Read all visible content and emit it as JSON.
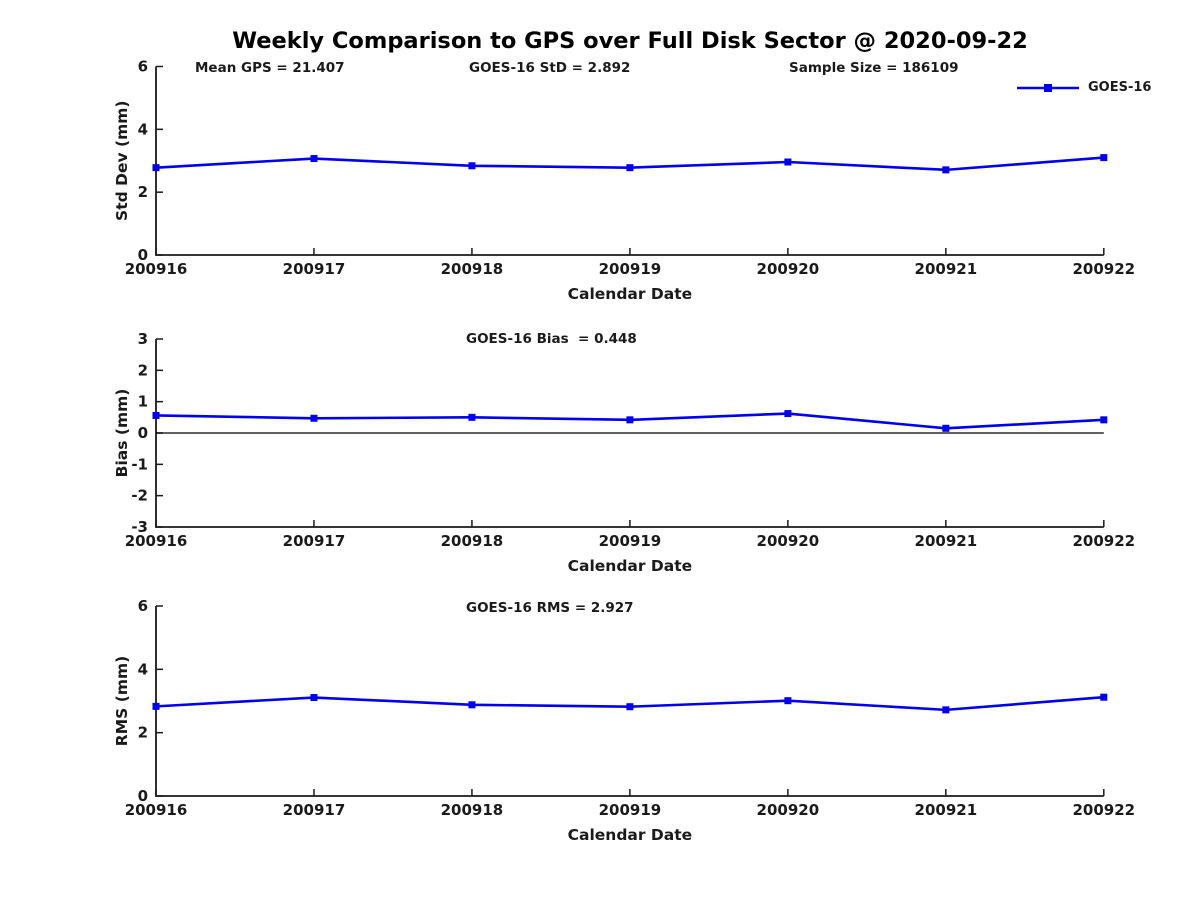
{
  "figure": {
    "title": "Weekly Comparison to GPS over Full Disk Sector @ 2020-09-22",
    "annotations": [
      {
        "id": "mean-gps",
        "text": "Mean GPS = 21.407"
      },
      {
        "id": "goes16-std",
        "text": "GOES-16 StD = 2.892"
      },
      {
        "id": "sample-size",
        "text": "Sample Size = 186109"
      }
    ],
    "legend": {
      "label": "GOES-16",
      "marker": "square-icon",
      "position": "top-right-outside"
    },
    "colors": {
      "series": "#0000EE",
      "axis": "#1a1a1a",
      "text": "#1a1a1a",
      "zero_line": "#000000",
      "background": "#FFFFFF"
    }
  },
  "chart_data": [
    {
      "type": "line",
      "panel": "std-dev",
      "subtitle": "",
      "categories": [
        "200916",
        "200917",
        "200918",
        "200919",
        "200920",
        "200921",
        "200922"
      ],
      "series": [
        {
          "name": "GOES-16",
          "marker": "square",
          "color": "#0000EE",
          "values": [
            2.78,
            3.07,
            2.84,
            2.78,
            2.96,
            2.71,
            3.1
          ]
        }
      ],
      "xlabel": "Calendar Date",
      "ylabel": "Std Dev (mm)",
      "ylim": [
        0,
        6
      ],
      "yticks": [
        6,
        4,
        2,
        0
      ],
      "zero_line": false,
      "grid": false
    },
    {
      "type": "line",
      "panel": "bias",
      "subtitle": "GOES-16 Bias  = 0.448",
      "categories": [
        "200916",
        "200917",
        "200918",
        "200919",
        "200920",
        "200921",
        "200922"
      ],
      "series": [
        {
          "name": "GOES-16",
          "marker": "square",
          "color": "#0000EE",
          "values": [
            0.56,
            0.47,
            0.5,
            0.42,
            0.62,
            0.15,
            0.42
          ]
        }
      ],
      "xlabel": "Calendar Date",
      "ylabel": "Bias (mm)",
      "ylim": [
        -3,
        3
      ],
      "yticks": [
        3,
        2,
        1,
        0,
        -1,
        -2,
        -3
      ],
      "zero_line": true,
      "grid": false
    },
    {
      "type": "line",
      "panel": "rms",
      "subtitle": "GOES-16 RMS = 2.927",
      "categories": [
        "200916",
        "200917",
        "200918",
        "200919",
        "200920",
        "200921",
        "200922"
      ],
      "series": [
        {
          "name": "GOES-16",
          "marker": "square",
          "color": "#0000EE",
          "values": [
            2.83,
            3.11,
            2.88,
            2.82,
            3.01,
            2.72,
            3.12
          ]
        }
      ],
      "xlabel": "Calendar Date",
      "ylabel": "RMS (mm)",
      "ylim": [
        0,
        6
      ],
      "yticks": [
        6,
        4,
        2,
        0
      ],
      "zero_line": false,
      "grid": false
    }
  ]
}
